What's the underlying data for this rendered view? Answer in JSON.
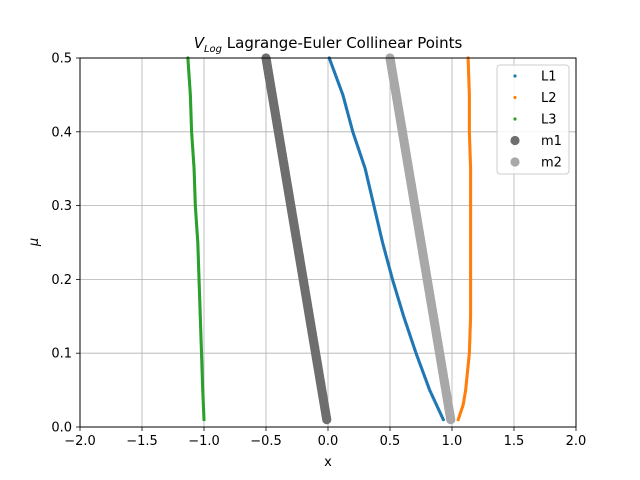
{
  "chart_data": {
    "type": "scatter",
    "title_main": "V",
    "title_sub": "Log",
    "title_rest": " Lagrange-Euler Collinear Points",
    "xlabel": "x",
    "ylabel": "μ",
    "xlim": [
      -2.0,
      2.0
    ],
    "ylim": [
      0.0,
      0.5
    ],
    "xticks": [
      -2.0,
      -1.5,
      -1.0,
      -0.5,
      0.0,
      0.5,
      1.0,
      1.5,
      2.0
    ],
    "xtick_labels": [
      "−2.0",
      "−1.5",
      "−1.0",
      "−0.5",
      "0.0",
      "0.5",
      "1.0",
      "1.5",
      "2.0"
    ],
    "yticks": [
      0.0,
      0.1,
      0.2,
      0.3,
      0.4,
      0.5
    ],
    "ytick_labels": [
      "0.0",
      "0.1",
      "0.2",
      "0.3",
      "0.4",
      "0.5"
    ],
    "grid": true,
    "legend_placement": "top-right",
    "mu_range": [
      0.01,
      0.5
    ],
    "series": [
      {
        "name": "L1",
        "color": "#1f77b4",
        "marker_size": "small",
        "mu": [
          0.01,
          0.05,
          0.1,
          0.15,
          0.2,
          0.25,
          0.3,
          0.35,
          0.4,
          0.45,
          0.5
        ],
        "x": [
          0.93,
          0.82,
          0.71,
          0.61,
          0.52,
          0.44,
          0.37,
          0.3,
          0.2,
          0.12,
          0.01
        ]
      },
      {
        "name": "L2",
        "color": "#ff7f0e",
        "marker_size": "small",
        "mu": [
          0.01,
          0.03,
          0.05,
          0.1,
          0.15,
          0.2,
          0.25,
          0.3,
          0.35,
          0.4,
          0.45,
          0.5
        ],
        "x": [
          1.05,
          1.09,
          1.11,
          1.14,
          1.15,
          1.15,
          1.15,
          1.15,
          1.15,
          1.14,
          1.14,
          1.13
        ]
      },
      {
        "name": "L3",
        "color": "#2ca02c",
        "marker_size": "small",
        "mu": [
          0.01,
          0.05,
          0.1,
          0.15,
          0.2,
          0.25,
          0.3,
          0.35,
          0.4,
          0.45,
          0.5
        ],
        "x": [
          -1.0,
          -1.01,
          -1.02,
          -1.03,
          -1.04,
          -1.05,
          -1.07,
          -1.08,
          -1.1,
          -1.11,
          -1.13
        ]
      },
      {
        "name": "m1",
        "color": "#6e6e6e",
        "marker_size": "large",
        "mu": [
          0.01,
          0.5
        ],
        "x": [
          -0.01,
          -0.5
        ]
      },
      {
        "name": "m2",
        "color": "#a8a8a8",
        "marker_size": "large",
        "mu": [
          0.01,
          0.5
        ],
        "x": [
          0.99,
          0.5
        ]
      }
    ]
  }
}
